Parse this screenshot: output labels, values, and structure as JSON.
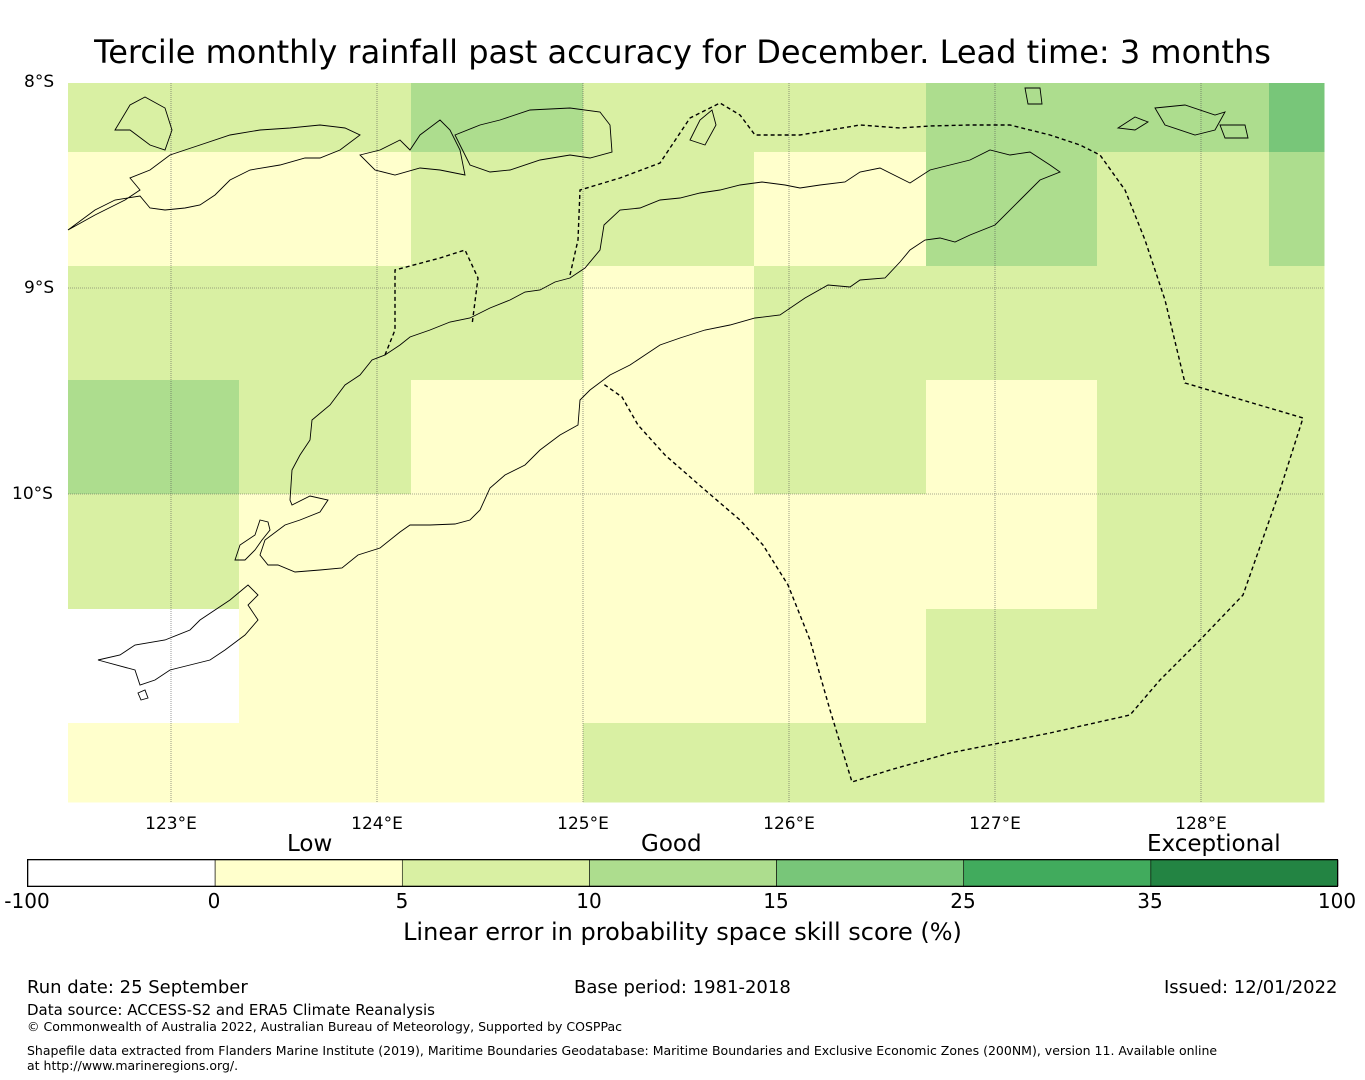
{
  "title": "Tercile monthly rainfall past accuracy for December. Lead time: 3 months",
  "map": {
    "lat_labels": [
      "8°S",
      "9°S",
      "10°S"
    ],
    "lon_labels": [
      "123°E",
      "124°E",
      "125°E",
      "126°E",
      "127°E",
      "128°E"
    ],
    "features": [
      "coastline",
      "EEZ boundary (dashed)",
      "gridlines"
    ],
    "grid_cells_skill_bin": [
      [
        2,
        2,
        3,
        2,
        2,
        3,
        3,
        4
      ],
      [
        1,
        1,
        2,
        2,
        1,
        3,
        2,
        3
      ],
      [
        2,
        2,
        2,
        1,
        2,
        2,
        2,
        2
      ],
      [
        3,
        2,
        1,
        1,
        2,
        1,
        2,
        2
      ],
      [
        2,
        1,
        1,
        1,
        1,
        1,
        2,
        2
      ],
      [
        0,
        1,
        1,
        1,
        1,
        2,
        2,
        2
      ],
      [
        1,
        1,
        1,
        2,
        2,
        2,
        2,
        2
      ]
    ],
    "colors": {
      "land_line": "#000000",
      "boundary_line": "#000000",
      "grid_line": "#555555"
    }
  },
  "colorbar": {
    "categories": [
      "Low",
      "Good",
      "Exceptional"
    ],
    "ticks": [
      "-100",
      "0",
      "5",
      "10",
      "15",
      "25",
      "35",
      "100"
    ],
    "bins": [
      {
        "from": -100,
        "to": 0,
        "color": "#ffffff"
      },
      {
        "from": 0,
        "to": 5,
        "color": "#ffffcc"
      },
      {
        "from": 5,
        "to": 10,
        "color": "#d9f0a3"
      },
      {
        "from": 10,
        "to": 15,
        "color": "#addd8e"
      },
      {
        "from": 15,
        "to": 25,
        "color": "#78c679"
      },
      {
        "from": 25,
        "to": 35,
        "color": "#41ab5d"
      },
      {
        "from": 35,
        "to": 100,
        "color": "#238443"
      }
    ],
    "label": "Linear error in probability space skill score (%)"
  },
  "footer": {
    "run_date": "Run date: 25 September",
    "base_period": "Base period: 1981-2018",
    "issued": "Issued: 12/01/2022",
    "data_source": "Data source: ACCESS-S2 and ERA5 Climate Reanalysis",
    "copyright": "© Commonwealth of Australia 2022, Australian Bureau of Meteorology, Supported by COSPPac",
    "shapefile": "Shapefile data extracted from Flanders Marine Institute (2019), Maritime Boundaries Geodatabase: Maritime Boundaries and Exclusive Economic Zones (200NM), version 11. Available online at http://www.marineregions.org/."
  }
}
